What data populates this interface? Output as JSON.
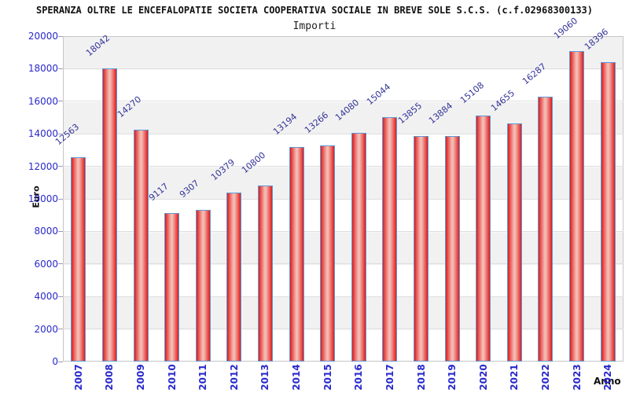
{
  "header": {
    "title": "SPERANZA OLTRE LE ENCEFALOPATIE SOCIETA COOPERATIVA SOCIALE IN BREVE SOLE S.C.S. (c.f.02968300133)"
  },
  "chart_data": {
    "type": "bar",
    "title": "Importi",
    "xlabel": "Anno",
    "ylabel": "Euro",
    "categories": [
      "2007",
      "2008",
      "2009",
      "2010",
      "2011",
      "2012",
      "2013",
      "2014",
      "2015",
      "2016",
      "2017",
      "2018",
      "2019",
      "2020",
      "2021",
      "2022",
      "2023",
      "2024"
    ],
    "values": [
      12563,
      18042,
      14270,
      9117,
      9307,
      10379,
      10800,
      13194,
      13266,
      14080,
      15044,
      13855,
      13884,
      15108,
      14655,
      16287,
      19060,
      18396
    ],
    "ylim": [
      0,
      20000
    ],
    "ytick_step": 2000,
    "legend": "none",
    "grid": "horizontal-lines-with-alternating-bands",
    "colors": {
      "bar_fill": "#d41f1f",
      "bar_fill_highlight": "#f2bcb4",
      "bar_border": "#5e9cd8",
      "axis_tick_label": "#2929cc",
      "value_label": "#333399",
      "band_gray": "#f1f1f1",
      "gridline": "#dedede",
      "text": "#111111"
    }
  }
}
